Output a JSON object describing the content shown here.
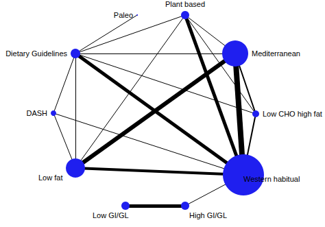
{
  "chart_data": {
    "type": "graph",
    "color": "#1f1fef",
    "nodes": [
      {
        "name": "Paleo",
        "size": 2
      },
      {
        "name": "Plant based",
        "size": 12
      },
      {
        "name": "Mediterranean",
        "size": 38
      },
      {
        "name": "Low CHO high fat",
        "size": 10
      },
      {
        "name": "Western habitual",
        "size": 60
      },
      {
        "name": "Low fat",
        "size": 28
      },
      {
        "name": "DASH",
        "size": 8
      },
      {
        "name": "Dietary Guidelines",
        "size": 14
      },
      {
        "name": "Low GI/GL",
        "size": 12
      },
      {
        "name": "High GI/GL",
        "size": 12
      }
    ],
    "edges": [
      {
        "source": "Paleo",
        "target": "Dietary Guidelines",
        "weight": 1
      },
      {
        "source": "Plant based",
        "target": "Dietary Guidelines",
        "weight": 1
      },
      {
        "source": "Plant based",
        "target": "Mediterranean",
        "weight": 1
      },
      {
        "source": "Plant based",
        "target": "Low CHO high fat",
        "weight": 1
      },
      {
        "source": "Plant based",
        "target": "Western habitual",
        "weight": 5
      },
      {
        "source": "Plant based",
        "target": "Low fat",
        "weight": 1
      },
      {
        "source": "Dietary Guidelines",
        "target": "Mediterranean",
        "weight": 1
      },
      {
        "source": "Dietary Guidelines",
        "target": "Low CHO high fat",
        "weight": 1
      },
      {
        "source": "Dietary Guidelines",
        "target": "Western habitual",
        "weight": 5
      },
      {
        "source": "Dietary Guidelines",
        "target": "DASH",
        "weight": 1
      },
      {
        "source": "Dietary Guidelines",
        "target": "Low fat",
        "weight": 1
      },
      {
        "source": "Mediterranean",
        "target": "Low fat",
        "weight": 6
      },
      {
        "source": "Mediterranean",
        "target": "Western habitual",
        "weight": 8
      },
      {
        "source": "Mediterranean",
        "target": "Low CHO high fat",
        "weight": 2
      },
      {
        "source": "Low CHO high fat",
        "target": "Western habitual",
        "weight": 2
      },
      {
        "source": "DASH",
        "target": "Western habitual",
        "weight": 1
      },
      {
        "source": "DASH",
        "target": "Low fat",
        "weight": 1
      },
      {
        "source": "Low fat",
        "target": "Western habitual",
        "weight": 4
      },
      {
        "source": "Low GI/GL",
        "target": "High GI/GL",
        "weight": 5
      },
      {
        "source": "Western habitual",
        "target": "High GI/GL",
        "weight": 1
      }
    ]
  }
}
